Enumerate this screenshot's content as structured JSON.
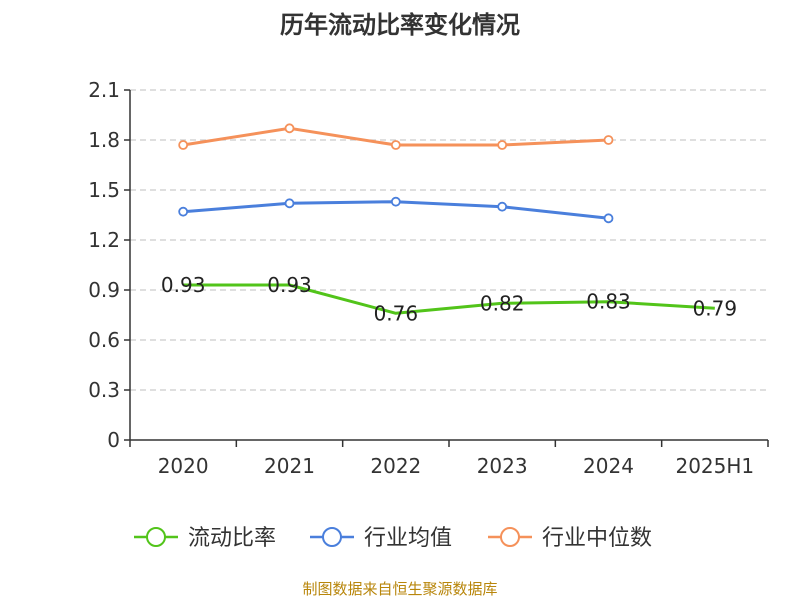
{
  "chart_data": {
    "type": "line",
    "title": "历年流动比率变化情况",
    "categories": [
      "2020",
      "2021",
      "2022",
      "2023",
      "2024",
      "2025H1"
    ],
    "ylim": [
      0,
      2.1
    ],
    "yticks": [
      "0",
      "0.3",
      "0.6",
      "0.9",
      "1.2",
      "1.5",
      "1.8",
      "2.1"
    ],
    "grid": true,
    "legend_position": "bottom",
    "series": [
      {
        "name": "流动比率",
        "color": "#52c41a",
        "values": [
          0.93,
          0.93,
          0.76,
          0.82,
          0.83,
          0.79
        ],
        "labels": [
          "0.93",
          "0.93",
          "0.76",
          "0.82",
          "0.83",
          "0.79"
        ]
      },
      {
        "name": "行业均值",
        "color": "#4a7fdc",
        "values": [
          1.37,
          1.42,
          1.43,
          1.4,
          1.33,
          null
        ]
      },
      {
        "name": "行业中位数",
        "color": "#f5915a",
        "values": [
          1.77,
          1.87,
          1.77,
          1.77,
          1.8,
          null
        ]
      }
    ]
  },
  "source_text": "制图数据来自恒生聚源数据库"
}
